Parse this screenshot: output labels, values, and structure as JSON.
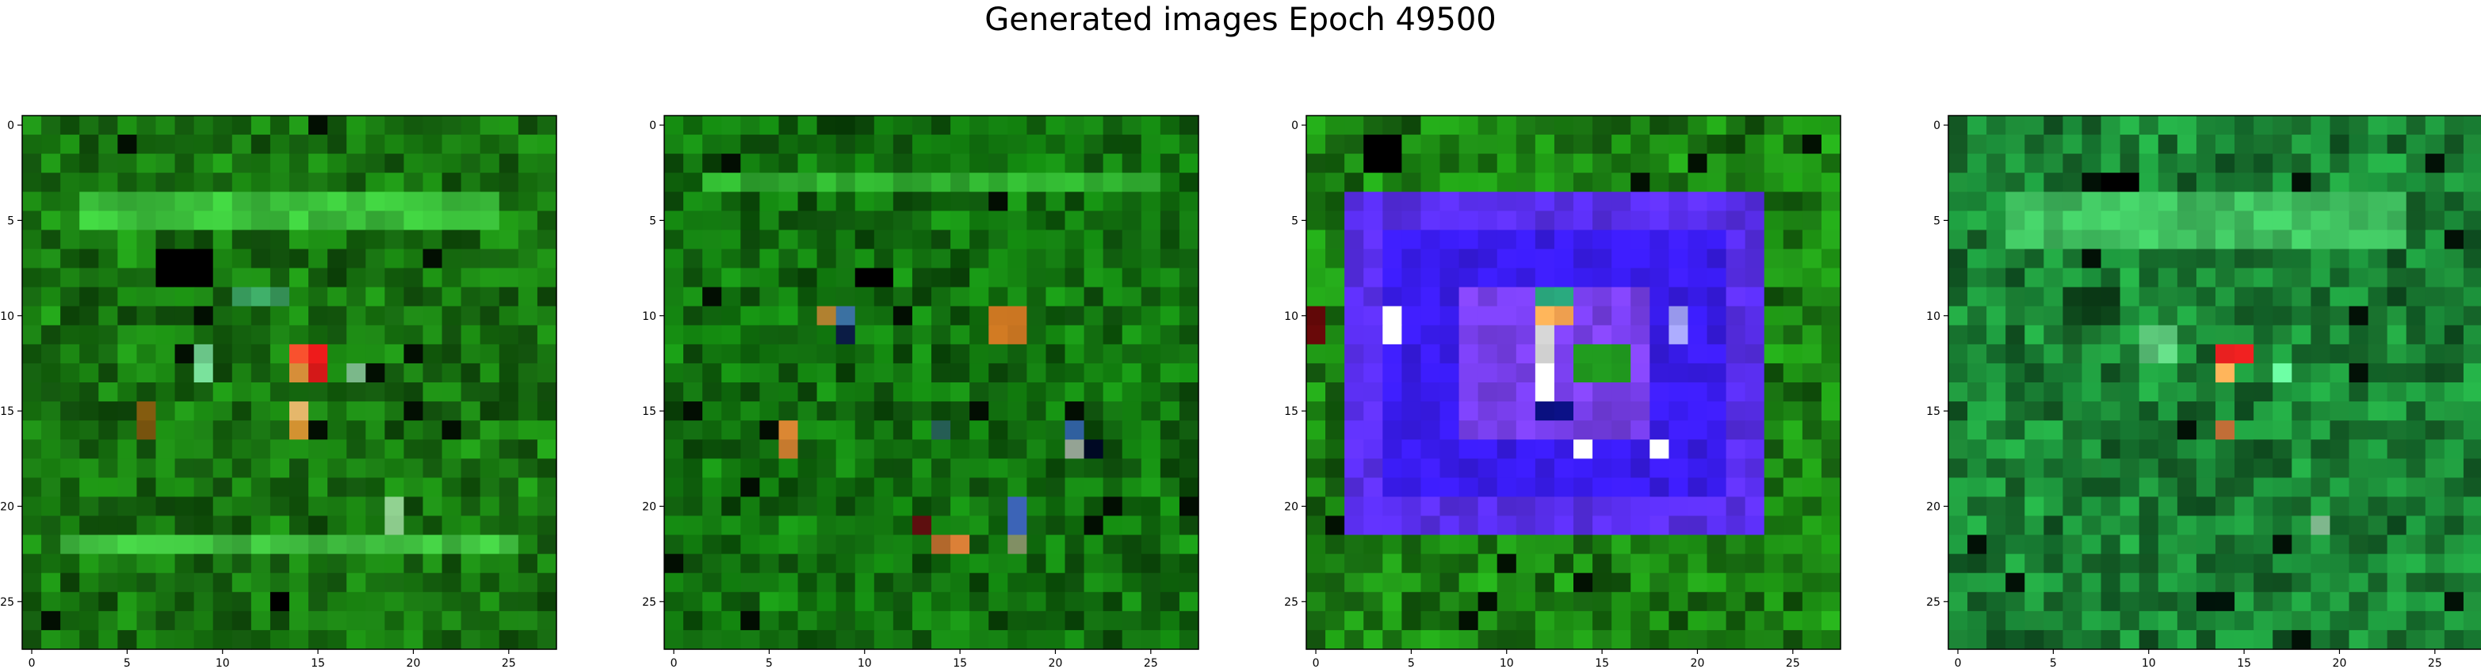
{
  "figure": {
    "title": "Generated images Epoch 49500"
  },
  "chart_data": [
    {
      "type": "heatmap",
      "panel": 1,
      "rows": 28,
      "cols": 28,
      "xlim": [
        -0.5,
        27.5
      ],
      "ylim": [
        27.5,
        -0.5
      ],
      "x_ticks": [
        0,
        5,
        10,
        15,
        20,
        25
      ],
      "y_ticks": [
        0,
        5,
        10,
        15,
        20,
        25
      ],
      "base_color": "#1a7d12",
      "features": [
        {
          "r0": 4,
          "r1": 5,
          "c0": 3,
          "c1": 24,
          "color": "#3cc23c"
        },
        {
          "r0": 7,
          "r1": 8,
          "c0": 7,
          "c1": 9,
          "color": "#000000"
        },
        {
          "r0": 9,
          "r1": 9,
          "c0": 11,
          "c1": 13,
          "color": "#3aa060"
        },
        {
          "r0": 12,
          "r1": 12,
          "c0": 14,
          "c1": 14,
          "color": "#e44a2a"
        },
        {
          "r0": 12,
          "r1": 13,
          "c0": 15,
          "c1": 15,
          "color": "#e61a1a"
        },
        {
          "r0": 13,
          "r1": 13,
          "c0": 14,
          "c1": 14,
          "color": "#f0a040"
        },
        {
          "r0": 15,
          "r1": 15,
          "c0": 14,
          "c1": 14,
          "color": "#f0c070"
        },
        {
          "r0": 16,
          "r1": 16,
          "c0": 14,
          "c1": 14,
          "color": "#d09030"
        },
        {
          "r0": 12,
          "r1": 13,
          "c0": 9,
          "c1": 9,
          "color": "#70d090"
        },
        {
          "r0": 13,
          "r1": 13,
          "c0": 17,
          "c1": 17,
          "color": "#80c090"
        },
        {
          "r0": 15,
          "r1": 16,
          "c0": 6,
          "c1": 6,
          "color": "#8a6010"
        },
        {
          "r0": 20,
          "r1": 21,
          "c0": 19,
          "c1": 19,
          "color": "#a0e8a0"
        },
        {
          "r0": 22,
          "r1": 22,
          "c0": 2,
          "c1": 25,
          "color": "#40c040"
        },
        {
          "r0": 25,
          "r1": 25,
          "c0": 13,
          "c1": 13,
          "color": "#000000"
        }
      ]
    },
    {
      "type": "heatmap",
      "panel": 2,
      "rows": 28,
      "cols": 28,
      "xlim": [
        -0.5,
        27.5
      ],
      "ylim": [
        27.5,
        -0.5
      ],
      "x_ticks": [
        0,
        5,
        10,
        15,
        20,
        25
      ],
      "y_ticks": [
        0,
        5,
        10,
        15,
        20,
        25
      ],
      "base_color": "#137810",
      "features": [
        {
          "r0": 3,
          "r1": 3,
          "c0": 2,
          "c1": 25,
          "color": "#30b030"
        },
        {
          "r0": 8,
          "r1": 8,
          "c0": 10,
          "c1": 11,
          "color": "#000000"
        },
        {
          "r0": 10,
          "r1": 10,
          "c0": 9,
          "c1": 9,
          "color": "#3a70a0"
        },
        {
          "r0": 10,
          "r1": 10,
          "c0": 8,
          "c1": 8,
          "color": "#b08030"
        },
        {
          "r0": 11,
          "r1": 11,
          "c0": 9,
          "c1": 9,
          "color": "#0a1a40"
        },
        {
          "r0": 10,
          "r1": 11,
          "c0": 17,
          "c1": 18,
          "color": "#c07020"
        },
        {
          "r0": 16,
          "r1": 17,
          "c0": 6,
          "c1": 6,
          "color": "#d08030"
        },
        {
          "r0": 16,
          "r1": 16,
          "c0": 14,
          "c1": 14,
          "color": "#2a6a60"
        },
        {
          "r0": 16,
          "r1": 16,
          "c0": 21,
          "c1": 21,
          "color": "#3060a0"
        },
        {
          "r0": 17,
          "r1": 17,
          "c0": 21,
          "c1": 21,
          "color": "#a0b0a0"
        },
        {
          "r0": 17,
          "r1": 17,
          "c0": 22,
          "c1": 22,
          "color": "#000820"
        },
        {
          "r0": 20,
          "r1": 21,
          "c0": 18,
          "c1": 18,
          "color": "#3a60b0"
        },
        {
          "r0": 21,
          "r1": 21,
          "c0": 13,
          "c1": 13,
          "color": "#601010"
        },
        {
          "r0": 22,
          "r1": 22,
          "c0": 14,
          "c1": 15,
          "color": "#c07030"
        },
        {
          "r0": 22,
          "r1": 22,
          "c0": 18,
          "c1": 18,
          "color": "#90a070"
        }
      ]
    },
    {
      "type": "heatmap",
      "panel": 3,
      "rows": 28,
      "cols": 28,
      "xlim": [
        -0.5,
        27.5
      ],
      "ylim": [
        27.5,
        -0.5
      ],
      "x_ticks": [
        0,
        5,
        10,
        15,
        20,
        25
      ],
      "y_ticks": [
        0,
        5,
        10,
        15,
        20,
        25
      ],
      "base_color": "#1d8a14",
      "features": [
        {
          "r0": 4,
          "r1": 21,
          "c0": 2,
          "c1": 23,
          "color": "#5a2ff0"
        },
        {
          "r0": 6,
          "r1": 19,
          "c0": 4,
          "c1": 21,
          "color": "#3a1cf2"
        },
        {
          "r0": 9,
          "r1": 16,
          "c0": 8,
          "c1": 17,
          "color": "#7a40f0"
        },
        {
          "r0": 11,
          "r1": 14,
          "c0": 12,
          "c1": 12,
          "color": "#f0f0f0"
        },
        {
          "r0": 10,
          "r1": 10,
          "c0": 12,
          "c1": 13,
          "color": "#f0a050"
        },
        {
          "r0": 10,
          "r1": 11,
          "c0": 4,
          "c1": 4,
          "color": "#f8f8f8"
        },
        {
          "r0": 17,
          "r1": 17,
          "c0": 14,
          "c1": 14,
          "color": "#ffffff"
        },
        {
          "r0": 17,
          "r1": 17,
          "c0": 18,
          "c1": 18,
          "color": "#ffffff"
        },
        {
          "r0": 12,
          "r1": 13,
          "c0": 14,
          "c1": 16,
          "color": "#22a020"
        },
        {
          "r0": 15,
          "r1": 15,
          "c0": 12,
          "c1": 13,
          "color": "#0a1080"
        },
        {
          "r0": 9,
          "r1": 9,
          "c0": 12,
          "c1": 13,
          "color": "#30c090"
        },
        {
          "r0": 10,
          "r1": 11,
          "c0": 19,
          "c1": 19,
          "color": "#a0a0f8"
        },
        {
          "r0": 10,
          "r1": 11,
          "c0": 0,
          "c1": 0,
          "color": "#600808"
        },
        {
          "r0": 1,
          "r1": 2,
          "c0": 3,
          "c1": 4,
          "color": "#000000"
        }
      ]
    },
    {
      "type": "heatmap",
      "panel": 4,
      "rows": 28,
      "cols": 28,
      "xlim": [
        -0.5,
        27.5
      ],
      "ylim": [
        27.5,
        -0.5
      ],
      "x_ticks": [
        0,
        5,
        10,
        15,
        20,
        25
      ],
      "y_ticks": [
        0,
        5,
        10,
        15,
        20,
        25
      ],
      "base_color": "#1c8a38",
      "features": [
        {
          "r0": 4,
          "r1": 6,
          "c0": 3,
          "c1": 23,
          "color": "#40c060"
        },
        {
          "r0": 3,
          "r1": 3,
          "c0": 8,
          "c1": 9,
          "color": "#000000"
        },
        {
          "r0": 12,
          "r1": 12,
          "c0": 14,
          "c1": 15,
          "color": "#e82020"
        },
        {
          "r0": 13,
          "r1": 13,
          "c0": 14,
          "c1": 14,
          "color": "#f0a050"
        },
        {
          "r0": 16,
          "r1": 16,
          "c0": 14,
          "c1": 14,
          "color": "#e08040"
        },
        {
          "r0": 11,
          "r1": 12,
          "c0": 10,
          "c1": 11,
          "color": "#60d080"
        },
        {
          "r0": 13,
          "r1": 13,
          "c0": 17,
          "c1": 17,
          "color": "#60f090"
        },
        {
          "r0": 9,
          "r1": 10,
          "c0": 6,
          "c1": 8,
          "color": "#0c4018"
        },
        {
          "r0": 21,
          "r1": 21,
          "c0": 19,
          "c1": 19,
          "color": "#90d0a0"
        },
        {
          "r0": 25,
          "r1": 25,
          "c0": 13,
          "c1": 14,
          "color": "#00140a"
        }
      ]
    }
  ]
}
